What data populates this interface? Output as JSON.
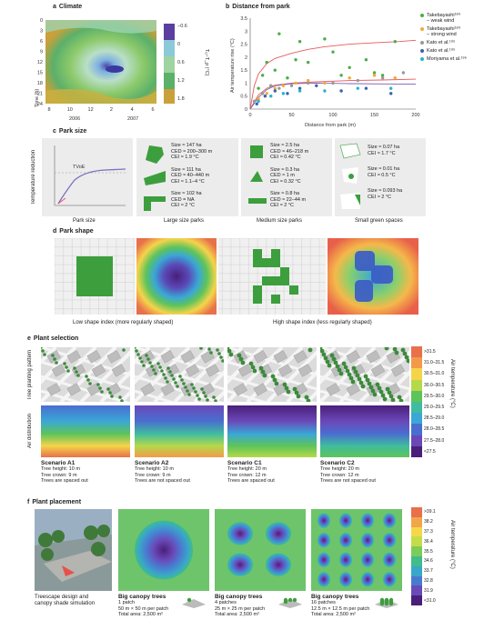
{
  "panel_a": {
    "letter": "a",
    "title": "Climate",
    "ylabel": "Time (h)",
    "yticks": [
      "0",
      "3",
      "6",
      "9",
      "12",
      "15",
      "18",
      "21",
      "24"
    ],
    "xticks": [
      "8",
      "10",
      "12",
      "2",
      "4",
      "6"
    ],
    "years": [
      "2006",
      "2007"
    ],
    "colorbar_label": "Tᵤ−T_p (°C)",
    "colorbar_ticks": [
      "−0.6",
      "0",
      "0.6",
      "1.2",
      "1.8"
    ]
  },
  "panel_b": {
    "letter": "b",
    "title": "Distance from park",
    "legend": [
      {
        "name": "Takebayashi¹⁸⁹\n– weak wind",
        "color": "#4aae4a"
      },
      {
        "name": "Takebayashi¹⁸⁹\n– strong wind",
        "color": "#f2a93b"
      },
      {
        "name": "Kato et al.¹⁹⁵",
        "color": "#999999"
      },
      {
        "name": "Kato et al.¹⁹⁵",
        "color": "#3a62b0"
      },
      {
        "name": "Moriyama et al.¹⁹⁶",
        "color": "#27b3c9"
      }
    ]
  },
  "chart_data": {
    "type": "scatter",
    "xlabel": "Distance from park (m)",
    "ylabel": "Air temperature rise (°C)",
    "xlim": [
      0,
      200
    ],
    "ylim": [
      0,
      3.5
    ],
    "xticks": [
      0,
      50,
      100,
      150,
      200
    ],
    "yticks": [
      0,
      0.5,
      1,
      1.5,
      2,
      2.5,
      3,
      3.5
    ],
    "series": [
      {
        "name": "Takebayashi – weak wind",
        "color": "#4aae4a",
        "x": [
          5,
          10,
          15,
          20,
          25,
          30,
          35,
          45,
          55,
          60,
          70,
          90,
          100,
          110,
          120,
          140,
          150,
          160,
          175
        ],
        "y": [
          0.3,
          0.8,
          1.3,
          1.8,
          0.9,
          1.5,
          2.9,
          1.2,
          1.9,
          2.6,
          1.8,
          2.7,
          2.2,
          1.3,
          1.6,
          1.9,
          1.4,
          1.3,
          2.6
        ]
      },
      {
        "name": "Takebayashi – strong wind",
        "color": "#f2a93b",
        "x": [
          10,
          20,
          30,
          40,
          55,
          70,
          90,
          120,
          150,
          175
        ],
        "y": [
          0.4,
          0.6,
          0.8,
          0.9,
          1.0,
          1.1,
          1.0,
          1.2,
          1.3,
          1.2
        ]
      },
      {
        "name": "Kato et al. (grey)",
        "color": "#999999",
        "x": [
          5,
          15,
          25,
          35,
          50,
          70,
          100,
          130,
          160,
          185
        ],
        "y": [
          0.3,
          0.6,
          0.9,
          0.8,
          0.9,
          1.0,
          1.0,
          1.1,
          1.2,
          1.4
        ]
      },
      {
        "name": "Kato et al. (blue)",
        "color": "#3a62b0",
        "x": [
          8,
          18,
          30,
          45,
          60,
          80,
          110,
          140,
          170
        ],
        "y": [
          0.2,
          0.5,
          0.7,
          0.6,
          0.8,
          0.9,
          0.7,
          0.8,
          0.6
        ]
      },
      {
        "name": "Moriyama et al.",
        "color": "#27b3c9",
        "x": [
          10,
          25,
          40,
          60,
          90,
          130,
          170
        ],
        "y": [
          0.3,
          0.5,
          0.6,
          0.7,
          0.7,
          0.8,
          0.8
        ]
      }
    ],
    "fits": [
      {
        "color": "#e85a5a",
        "x": [
          0,
          5,
          10,
          20,
          30,
          40,
          50,
          70,
          90,
          120,
          150,
          180,
          200
        ],
        "y": [
          0,
          0.9,
          1.35,
          1.75,
          1.95,
          2.05,
          2.15,
          2.3,
          2.4,
          2.5,
          2.55,
          2.6,
          2.65
        ]
      },
      {
        "color": "#e85a5a",
        "x": [
          0,
          10,
          20,
          30,
          50,
          80,
          120,
          160,
          200
        ],
        "y": [
          0,
          0.55,
          0.8,
          0.92,
          1.0,
          1.05,
          1.1,
          1.12,
          1.15
        ]
      },
      {
        "color": "#7a5fb5",
        "x": [
          0,
          10,
          20,
          30,
          50,
          80,
          120,
          160,
          200
        ],
        "y": [
          0,
          0.45,
          0.75,
          0.9,
          0.98,
          1.0,
          0.98,
          0.97,
          0.96
        ]
      }
    ]
  },
  "panel_c": {
    "letter": "c",
    "title": "Park size",
    "ylabel": "Temperature reduction",
    "curve_label": "TVoE",
    "captions": [
      "Park size",
      "Large size parks",
      "Medium size parks",
      "Small green spaces"
    ],
    "large": [
      {
        "size": "Size ≈ 147 ha",
        "ced": "CED ≈ 200–300 m",
        "cei": "CEI ≈ 1.9 °C"
      },
      {
        "size": "Size ≈ 111 ha",
        "ced": "CED ≈ 40–440 m",
        "cei": "CEI ≈ 1.1–4 °C"
      },
      {
        "size": "Size ≈ 102 ha",
        "ced": "CED = NA",
        "cei": "CEI ≈ 2 °C"
      }
    ],
    "medium": [
      {
        "size": "Size ≈ 2.5 ha",
        "ced": "CED ≈ 46–218 m",
        "cei": "CEI ≈ 0.42 °C"
      },
      {
        "size": "Size ≈ 0.3 ha",
        "ced": "CED ≈ 1 m",
        "cei": "CEI ≈ 0.32 °C"
      },
      {
        "size": "Size ≈ 0.8 ha",
        "ced": "CED ≈ 22–44 m",
        "cei": "CEI ≈ 2 °C"
      }
    ],
    "small": [
      {
        "size": "Size ≈ 0.07 ha",
        "cei": "CEI ≈ 1.7 °C"
      },
      {
        "size": "Size ≈ 0.01 ha",
        "cei": "CEI ≈ 0.5 °C"
      },
      {
        "size": "Size ≈ 0.093 ha",
        "cei": "CEI ≈ 2 °C"
      }
    ]
  },
  "panel_d": {
    "letter": "d",
    "title": "Park shape",
    "captions": [
      "Low shape index (more regularly shaped)",
      "High shape index (less regularly shaped)"
    ]
  },
  "panel_e": {
    "letter": "e",
    "title": "Plant selection",
    "row_labels": [
      "Tree planting pattern",
      "Air distribution"
    ],
    "colorbar_label": "Air temperature (°C)",
    "colorbar": [
      {
        "label": ">31.5",
        "color": "#e8704a"
      },
      {
        "label": "31.0–31.5",
        "color": "#f29a4a"
      },
      {
        "label": "30.5–31.0",
        "color": "#f5d44a"
      },
      {
        "label": "30.0–30.5",
        "color": "#b5d94a"
      },
      {
        "label": "29.5–30.0",
        "color": "#5ec45a"
      },
      {
        "label": "29.0–29.5",
        "color": "#3fbd9e"
      },
      {
        "label": "28.5–29.0",
        "color": "#3aa7d6"
      },
      {
        "label": "28.0–28.5",
        "color": "#4a6ed0"
      },
      {
        "label": "27.5–28.0",
        "color": "#6a48b8"
      },
      {
        "label": "<27.5",
        "color": "#4a1f7a"
      }
    ],
    "scenarios": [
      {
        "name": "Scenario A1",
        "lines": [
          "Tree height: 10 m",
          "Tree crown: 9 m",
          "Trees are spaced out"
        ]
      },
      {
        "name": "Scenario A2",
        "lines": [
          "Tree height: 10 m",
          "Tree crown: 9 m",
          "Trees are not spaced out"
        ]
      },
      {
        "name": "Scenario C1",
        "lines": [
          "Tree height: 20 m",
          "Tree crown: 12 m",
          "Trees are spaced out"
        ]
      },
      {
        "name": "Scenario C2",
        "lines": [
          "Tree height: 20 m",
          "Tree crown: 12 m",
          "Trees are not spaced out"
        ]
      }
    ]
  },
  "panel_f": {
    "letter": "f",
    "title": "Plant placement",
    "sim_caption": [
      "Treescape design and",
      "canopy shade simulation"
    ],
    "colorbar_label": "Air temperature (°C)",
    "colorbar": [
      {
        "label": ">39.1",
        "color": "#e8704a"
      },
      {
        "label": "38.2",
        "color": "#f2a64a"
      },
      {
        "label": "37.3",
        "color": "#f5d84a"
      },
      {
        "label": "36.4",
        "color": "#c5dc4a"
      },
      {
        "label": "35.5",
        "color": "#7ccc5a"
      },
      {
        "label": "34.6",
        "color": "#3fbd8a"
      },
      {
        "label": "33.7",
        "color": "#3aa7c8"
      },
      {
        "label": "32.8",
        "color": "#4a7ad0"
      },
      {
        "label": "31.9",
        "color": "#6a4ab8"
      },
      {
        "label": "<31.0",
        "color": "#4a1f7a"
      }
    ],
    "cases": [
      {
        "title": "Big canopy trees",
        "lines": [
          "1 patch",
          "50 m × 50 m per patch",
          "Total area: 2,500 m²"
        ]
      },
      {
        "title": "Big canopy trees",
        "lines": [
          "4 patches",
          "25 m × 25 m per patch",
          "Total area: 2,500 m²"
        ]
      },
      {
        "title": "Big canopy trees",
        "lines": [
          "16 patches",
          "12.5 m × 12.5 m per patch",
          "Total area: 2,500 m²"
        ]
      }
    ]
  }
}
